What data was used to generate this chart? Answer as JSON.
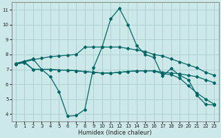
{
  "background_color": "#cce8e8",
  "grid_color": "#aacccc",
  "line_color": "#006666",
  "xlabel": "Humidex (Indice chaleur)",
  "xlim": [
    -0.5,
    23.5
  ],
  "ylim": [
    3.5,
    11.5
  ],
  "xticks": [
    0,
    1,
    2,
    3,
    4,
    5,
    6,
    7,
    8,
    9,
    10,
    11,
    12,
    13,
    14,
    15,
    16,
    17,
    18,
    19,
    20,
    21,
    22,
    23
  ],
  "yticks": [
    4,
    5,
    6,
    7,
    8,
    9,
    10,
    11
  ],
  "line1_y": [
    7.4,
    7.55,
    7.7,
    7.0,
    6.5,
    5.5,
    3.85,
    3.9,
    4.3,
    7.1,
    8.5,
    10.4,
    11.1,
    10.0,
    8.6,
    8.0,
    7.8,
    6.55,
    7.05,
    6.6,
    6.3,
    5.25,
    4.65,
    4.6
  ],
  "line2_y": [
    7.35,
    7.5,
    7.65,
    7.75,
    7.85,
    7.9,
    7.95,
    8.0,
    8.5,
    8.5,
    8.5,
    8.5,
    8.5,
    8.4,
    8.3,
    8.2,
    8.0,
    7.9,
    7.7,
    7.5,
    7.3,
    7.1,
    6.8,
    6.6
  ],
  "line3_y": [
    7.35,
    7.5,
    7.0,
    7.0,
    7.0,
    6.95,
    6.95,
    6.9,
    6.85,
    6.8,
    6.75,
    6.75,
    6.8,
    6.85,
    6.9,
    6.9,
    6.9,
    6.8,
    6.75,
    6.7,
    6.6,
    6.5,
    6.3,
    6.1
  ],
  "line4_y": [
    7.35,
    7.45,
    7.0,
    7.0,
    7.0,
    6.95,
    6.95,
    6.9,
    6.85,
    6.8,
    6.75,
    6.75,
    6.8,
    6.85,
    6.9,
    6.9,
    6.9,
    6.7,
    6.65,
    6.4,
    5.9,
    5.4,
    5.0,
    4.65
  ]
}
